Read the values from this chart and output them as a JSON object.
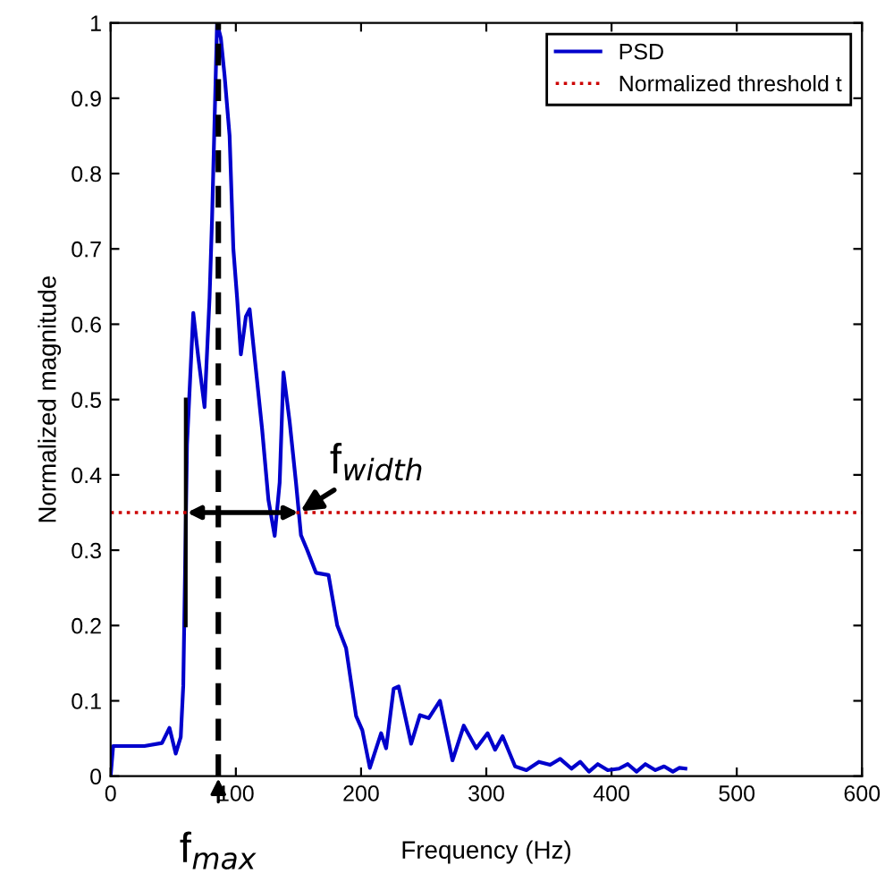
{
  "chart_data": {
    "type": "line",
    "xlabel": "Frequency (Hz)",
    "ylabel": "Normalized magnitude",
    "series": [
      {
        "name": "PSD",
        "color": "#0000cc",
        "x": [
          0,
          2,
          27,
          41,
          47,
          52,
          56,
          58,
          60,
          61,
          66,
          70,
          75,
          79,
          81,
          85,
          88,
          91,
          95,
          98,
          101,
          104,
          108,
          111,
          115,
          121,
          126,
          131,
          135,
          138,
          143,
          148,
          152,
          157,
          164,
          174,
          181,
          188,
          196,
          201,
          207,
          216,
          220,
          226,
          230,
          240,
          247,
          254,
          263,
          273,
          282,
          292,
          301,
          307,
          313,
          323,
          332,
          342,
          351,
          359,
          368,
          375,
          382,
          389,
          397,
          406,
          413,
          420,
          427,
          435,
          442,
          449,
          454,
          459
        ],
        "values": [
          0,
          0.04,
          0.04,
          0.044,
          0.064,
          0.03,
          0.052,
          0.12,
          0.33,
          0.44,
          0.615,
          0.556,
          0.49,
          0.635,
          0.74,
          1.0,
          0.98,
          0.93,
          0.85,
          0.7,
          0.635,
          0.56,
          0.61,
          0.62,
          0.556,
          0.46,
          0.367,
          0.319,
          0.39,
          0.536,
          0.47,
          0.39,
          0.32,
          0.3,
          0.27,
          0.267,
          0.2,
          0.17,
          0.08,
          0.061,
          0.011,
          0.057,
          0.037,
          0.116,
          0.119,
          0.043,
          0.081,
          0.077,
          0.1,
          0.021,
          0.067,
          0.037,
          0.057,
          0.035,
          0.053,
          0.013,
          0.008,
          0.019,
          0.015,
          0.023,
          0.01,
          0.019,
          0.006,
          0.016,
          0.008,
          0.01,
          0.016,
          0.006,
          0.016,
          0.008,
          0.013,
          0.006,
          0.011,
          0.01
        ]
      },
      {
        "type": "line",
        "color": "#000000",
        "x": [
          60,
          60
        ],
        "values": [
          0.2,
          0.5
        ]
      }
    ],
    "ref_lines": [
      {
        "axis": "y",
        "value": 0.35,
        "label": "Normalized threshold t",
        "color": "#cc0000",
        "line_style": "dotted"
      },
      {
        "axis": "x",
        "value": 86,
        "label": "f$_{max}$",
        "color": "#000000",
        "line_style": "dashed"
      }
    ],
    "annotations": [
      {
        "text": "f$_{width}$",
        "x": 150,
        "y": 0.35
      }
    ],
    "xlim": [
      0,
      600
    ],
    "ylim": [
      0,
      1
    ],
    "xticks": [
      0,
      100,
      200,
      300,
      400,
      500,
      600
    ],
    "yticks": [
      0,
      0.1,
      0.2,
      0.3,
      0.4,
      0.5,
      0.6,
      0.7,
      0.8,
      0.9,
      1
    ],
    "legend": "top right",
    "grid": false,
    "marker": "none",
    "line_style": "solid"
  }
}
